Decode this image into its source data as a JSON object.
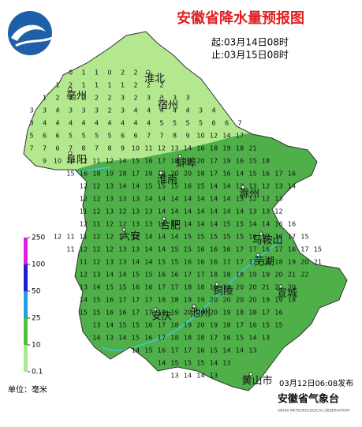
{
  "header": {
    "title": "安徽省降水量预报图",
    "start": "起:03月14日08时",
    "end": "止:03月15日08时"
  },
  "legend": {
    "ticks": [
      250,
      100,
      50,
      25,
      10,
      0.1
    ],
    "unit": "单位：毫米"
  },
  "cities": [
    "淮北",
    "宿州",
    "亳州",
    "阜阳",
    "蚌埠",
    "淮南",
    "滁州",
    "六安",
    "合肥",
    "马鞍山",
    "芜湖",
    "铜陵",
    "宣城",
    "安庆",
    "池州",
    "黄山市"
  ],
  "grid": [
    [
      null,
      null,
      null,
      0,
      1,
      1,
      0,
      2,
      2
    ],
    [
      null,
      null,
      1,
      2,
      1,
      1,
      1,
      1,
      2,
      2,
      2
    ],
    [
      null,
      1,
      2,
      2,
      2,
      2,
      2,
      3,
      2,
      3,
      3,
      3,
      3
    ],
    [
      3,
      3,
      4,
      3,
      3,
      3,
      2,
      3,
      4,
      4,
      4,
      4,
      4,
      3,
      4
    ],
    [
      3,
      4,
      4,
      4,
      4,
      4,
      4,
      4,
      4,
      4,
      5,
      5,
      5,
      5,
      6,
      6,
      7
    ],
    [
      5,
      6,
      6,
      5,
      5,
      5,
      5,
      6,
      6,
      7,
      7,
      8,
      9,
      10,
      12,
      14,
      17
    ],
    [
      7,
      7,
      6,
      7,
      8,
      7,
      8,
      9,
      10,
      11,
      12,
      13,
      14,
      16,
      18,
      19,
      18,
      21
    ],
    [
      null,
      9,
      10,
      10,
      12,
      11,
      12,
      14,
      15,
      16,
      17,
      18,
      19,
      20,
      17,
      19,
      16,
      15,
      18
    ],
    [
      null,
      null,
      null,
      15,
      16,
      18,
      19,
      18,
      17,
      19,
      19,
      20,
      20,
      18,
      17,
      16,
      14,
      15,
      16,
      17,
      16
    ],
    [
      null,
      null,
      null,
      null,
      12,
      12,
      13,
      14,
      14,
      15,
      15,
      15,
      16,
      15,
      14,
      14,
      13,
      13,
      12,
      13,
      14
    ],
    [
      null,
      null,
      null,
      null,
      12,
      12,
      13,
      13,
      13,
      14,
      14,
      14,
      14,
      14,
      14,
      14,
      13,
      12,
      12,
      13
    ],
    [
      null,
      null,
      null,
      null,
      11,
      12,
      13,
      12,
      13,
      13,
      14,
      14,
      14,
      14,
      14,
      14,
      14,
      13,
      13,
      12
    ],
    [
      null,
      null,
      null,
      null,
      12,
      11,
      12,
      12,
      13,
      13,
      14,
      14,
      14,
      14,
      14,
      15,
      15,
      14,
      14,
      16,
      16
    ],
    [
      null,
      null,
      12,
      11,
      11,
      12,
      12,
      13,
      13,
      14,
      14,
      14,
      15,
      15,
      15,
      15,
      15,
      16,
      17,
      16,
      17,
      15
    ],
    [
      null,
      null,
      null,
      11,
      12,
      12,
      12,
      13,
      13,
      14,
      14,
      15,
      15,
      16,
      16,
      16,
      17,
      17,
      16,
      17,
      16,
      17,
      15
    ],
    [
      null,
      null,
      null,
      null,
      11,
      12,
      13,
      13,
      14,
      14,
      15,
      15,
      16,
      16,
      16,
      17,
      17,
      17,
      18,
      18,
      19,
      20,
      21
    ],
    [
      null,
      null,
      null,
      null,
      12,
      13,
      14,
      14,
      15,
      15,
      16,
      16,
      17,
      17,
      18,
      18,
      18,
      19,
      19,
      20,
      21,
      22
    ],
    [
      null,
      null,
      null,
      null,
      13,
      14,
      15,
      15,
      16,
      16,
      17,
      17,
      18,
      18,
      19,
      19,
      20,
      20,
      21,
      20,
      20
    ],
    [
      null,
      null,
      null,
      null,
      14,
      15,
      16,
      17,
      17,
      17,
      18,
      18,
      19,
      19,
      20,
      20,
      20,
      20,
      19,
      19,
      18
    ],
    [
      null,
      null,
      null,
      null,
      15,
      15,
      16,
      16,
      17,
      17,
      18,
      19,
      20,
      20,
      20,
      19,
      18,
      18,
      17,
      16
    ],
    [
      null,
      null,
      null,
      null,
      null,
      13,
      14,
      15,
      15,
      16,
      17,
      18,
      19,
      20,
      19,
      18,
      17,
      16,
      15,
      15
    ],
    [
      null,
      null,
      null,
      null,
      null,
      14,
      13,
      14,
      15,
      16,
      17,
      18,
      18,
      18,
      17,
      16,
      15,
      14,
      13
    ],
    [
      null,
      null,
      null,
      null,
      null,
      null,
      null,
      null,
      14,
      15,
      16,
      17,
      17,
      16,
      15,
      14,
      14,
      13
    ],
    [
      null,
      null,
      null,
      null,
      null,
      null,
      null,
      null,
      null,
      null,
      14,
      15,
      15,
      15,
      14,
      13
    ],
    [
      null,
      null,
      null,
      null,
      null,
      null,
      null,
      null,
      null,
      null,
      null,
      13,
      14,
      14,
      13
    ]
  ],
  "footer": {
    "issued": "03月12日06:08发布",
    "org": "安徽省气象台",
    "org_en": "ANHUI METEOROLOGICAL OBSERVATORY"
  }
}
